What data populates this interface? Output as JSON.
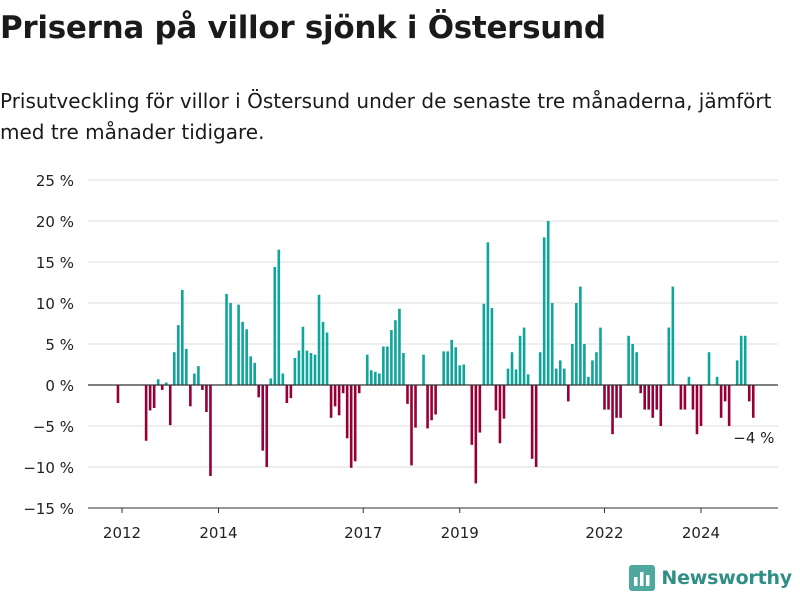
{
  "header": {
    "title": "Priserna på villor sjönk i Östersund",
    "subtitle": "Prisutveckling för villor i Östersund under de senaste tre månaderna, jämfört med tre månader tidigare."
  },
  "branding": {
    "name": "Newsworthy",
    "icon": "bar-chart-logo-icon"
  },
  "colors": {
    "positive": "#0ea59a",
    "negative": "#960036",
    "grid": "#dddddd",
    "axis": "#333333",
    "text": "#222222"
  },
  "chart_data": {
    "type": "bar",
    "x_start": "2011-12",
    "x_step": "month",
    "x_ticks": [
      "2012",
      "2014",
      "2017",
      "2019",
      "2022",
      "2024"
    ],
    "y_ticks": [
      25,
      20,
      15,
      10,
      5,
      0,
      -5,
      -10,
      -15
    ],
    "y_tick_labels": [
      "25 %",
      "20 %",
      "15 %",
      "10 %",
      "5 %",
      "0 %",
      "−5 %",
      "−10 %",
      "−15 %"
    ],
    "ylim": [
      -15,
      25
    ],
    "grid": true,
    "last_label": "−4 %",
    "values": [
      -2.2,
      0,
      0,
      0,
      0,
      0,
      0,
      -6.8,
      -3.1,
      -2.8,
      0.7,
      -0.6,
      0.3,
      -4.9,
      4,
      7.3,
      11.6,
      4.4,
      -2.6,
      1.4,
      2.3,
      -0.6,
      -3.3,
      -11.1,
      0,
      0,
      0,
      11.1,
      10,
      0,
      9.8,
      7.7,
      6.8,
      3.5,
      2.7,
      -1.5,
      -8,
      -10,
      0.8,
      14.4,
      16.5,
      1.4,
      -2.2,
      -1.6,
      3.3,
      4.2,
      7.1,
      4.2,
      3.9,
      3.7,
      11,
      7.7,
      6.4,
      -4,
      -2.6,
      -3.7,
      -1,
      -6.5,
      -10.1,
      -9.3,
      -1,
      0,
      3.7,
      1.8,
      1.6,
      1.4,
      4.7,
      4.7,
      6.7,
      7.9,
      9.3,
      3.9,
      -2.3,
      -9.8,
      -5.2,
      0,
      3.7,
      -5.3,
      -4.3,
      -3.6,
      0,
      4.1,
      4.1,
      5.5,
      4.6,
      2.4,
      2.5,
      0,
      -7.3,
      -12,
      -5.8,
      9.9,
      17.4,
      9.4,
      -3.1,
      -7.1,
      -4.1,
      2,
      4,
      1.9,
      6,
      7,
      1.3,
      -9,
      -10,
      4,
      18,
      20,
      10,
      2,
      3,
      2,
      -2,
      5,
      10,
      12,
      5,
      1,
      3,
      4,
      7,
      -3,
      -3,
      -6,
      -4,
      -4,
      0,
      6,
      5,
      4,
      -1,
      -3,
      -3,
      -4,
      -3,
      -5,
      0,
      7,
      12,
      0,
      -3,
      -3,
      1,
      -3,
      -6,
      -5,
      0,
      4,
      0,
      1,
      -4,
      -2,
      -5,
      0,
      3,
      6,
      6,
      -2,
      -4
    ]
  }
}
